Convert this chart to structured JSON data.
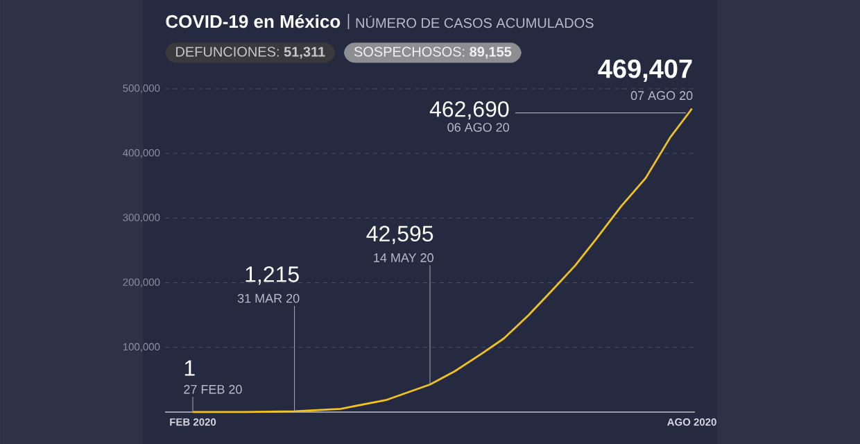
{
  "chart_data": {
    "type": "line",
    "title": "COVID-19 en México",
    "subtitle": "NÚMERO DE CASOS ACUMULADOS",
    "x": [
      "2020-02-27",
      "2020-03-15",
      "2020-03-31",
      "2020-04-15",
      "2020-04-30",
      "2020-05-14",
      "2020-05-22",
      "2020-05-31",
      "2020-06-07",
      "2020-06-15",
      "2020-06-22",
      "2020-06-30",
      "2020-07-07",
      "2020-07-15",
      "2020-07-23",
      "2020-07-31",
      "2020-08-06",
      "2020-08-07"
    ],
    "series": [
      {
        "color": "#f2c318",
        "values": [
          1,
          0,
          1215,
          5000,
          19000,
          42595,
          63000,
          91000,
          114000,
          150000,
          185000,
          226000,
          268000,
          318000,
          362000,
          425000,
          462690,
          469407
        ]
      }
    ],
    "xlim": [
      "2020-02-18",
      "2020-08-08"
    ],
    "xticks": [
      {
        "value": "2020-02-27",
        "label": "FEB 2020"
      },
      {
        "value": "2020-08-07",
        "label": "AGO 2020"
      }
    ],
    "ylim": [
      0,
      500000
    ],
    "yticks": [
      {
        "value": 100000,
        "label": "100,000"
      },
      {
        "value": 200000,
        "label": "200,000"
      },
      {
        "value": 300000,
        "label": "300,000"
      },
      {
        "value": 400000,
        "label": "400,000"
      },
      {
        "value": 500000,
        "label": "500,000"
      }
    ],
    "grid": "y",
    "annotations": [
      "DEFUNCIONES: **51,311**",
      "SOSPECHOSOS: **89,155**",
      {
        "text": "1",
        "x": "2020-02-27",
        "y": 1
      },
      {
        "text": "27 FEB 20",
        "x": "2020-02-27",
        "y": 1
      },
      {
        "text": "1,215",
        "x": "2020-03-31",
        "y": 1215
      },
      {
        "text": "31 MAR 20",
        "x": "2020-03-31",
        "y": 1215
      },
      {
        "text": "42,595",
        "x": "2020-05-14",
        "y": 42595
      },
      {
        "text": "14 MAY 20",
        "x": "2020-05-14",
        "y": 42595
      },
      {
        "text": "462,690",
        "x": "2020-08-06",
        "y": 462690
      },
      {
        "text": "06 AGO 20",
        "x": "2020-08-06",
        "y": 462690
      },
      {
        "text": "469,407",
        "x": "2020-08-07",
        "y": 469407
      },
      {
        "text": "07 AGO 20",
        "x": "2020-08-07",
        "y": 469407
      }
    ]
  }
}
